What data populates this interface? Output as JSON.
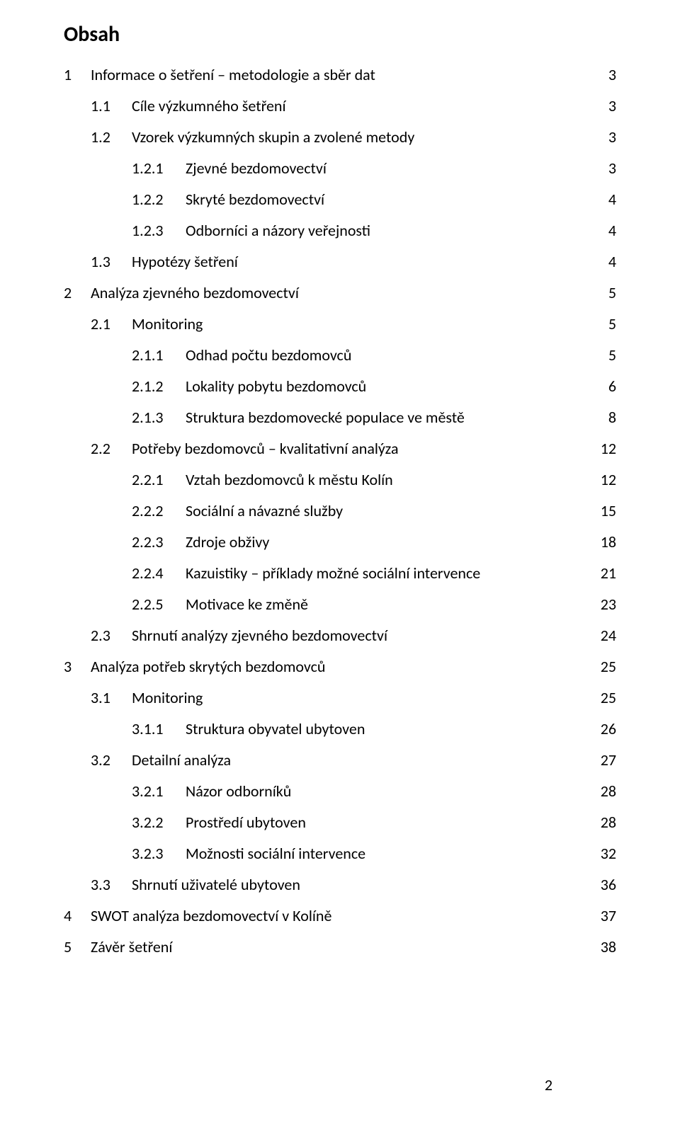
{
  "title": "Obsah",
  "page_number": "2",
  "colors": {
    "text": "#000000",
    "background": "#ffffff"
  },
  "typography": {
    "title_fontsize": 30,
    "row_fontsize": 22,
    "font_family": "Calibri"
  },
  "entries": [
    {
      "level": 1,
      "num": "1",
      "label": "Informace o šetření – metodologie a sběr dat",
      "page": "3"
    },
    {
      "level": 2,
      "num": "1.1",
      "label": "Cíle výzkumného šetření",
      "page": "3"
    },
    {
      "level": 2,
      "num": "1.2",
      "label": "Vzorek výzkumných skupin a zvolené metody",
      "page": "3"
    },
    {
      "level": 3,
      "num": "1.2.1",
      "label": "Zjevné bezdomovectví",
      "page": "3"
    },
    {
      "level": 3,
      "num": "1.2.2",
      "label": "Skryté bezdomovectví",
      "page": "4"
    },
    {
      "level": 3,
      "num": "1.2.3",
      "label": "Odborníci a názory veřejnosti",
      "page": "4"
    },
    {
      "level": 2,
      "num": "1.3",
      "label": "Hypotézy šetření",
      "page": "4"
    },
    {
      "level": 1,
      "num": "2",
      "label": "Analýza zjevného bezdomovectví",
      "page": "5"
    },
    {
      "level": 2,
      "num": "2.1",
      "label": "Monitoring",
      "page": "5"
    },
    {
      "level": 3,
      "num": "2.1.1",
      "label": "Odhad počtu bezdomovců",
      "page": "5"
    },
    {
      "level": 3,
      "num": "2.1.2",
      "label": "Lokality pobytu bezdomovců",
      "page": "6"
    },
    {
      "level": 3,
      "num": "2.1.3",
      "label": "Struktura bezdomovecké populace ve městě",
      "page": "8"
    },
    {
      "level": 2,
      "num": "2.2",
      "label": "Potřeby bezdomovců – kvalitativní analýza",
      "page": "12"
    },
    {
      "level": 3,
      "num": "2.2.1",
      "label": "Vztah bezdomovců k městu Kolín",
      "page": "12"
    },
    {
      "level": 3,
      "num": "2.2.2",
      "label": "Sociální a návazné služby",
      "page": "15"
    },
    {
      "level": 3,
      "num": "2.2.3",
      "label": "Zdroje obživy",
      "page": "18"
    },
    {
      "level": 3,
      "num": "2.2.4",
      "label": "Kazuistiky – příklady možné sociální intervence",
      "page": "21"
    },
    {
      "level": 3,
      "num": "2.2.5",
      "label": "Motivace ke změně",
      "page": "23"
    },
    {
      "level": 2,
      "num": "2.3",
      "label": "Shrnutí analýzy zjevného bezdomovectví",
      "page": "24"
    },
    {
      "level": 1,
      "num": "3",
      "label": "Analýza potřeb skrytých bezdomovců",
      "page": "25"
    },
    {
      "level": 2,
      "num": "3.1",
      "label": "Monitoring",
      "page": "25"
    },
    {
      "level": 3,
      "num": "3.1.1",
      "label": "Struktura obyvatel ubytoven",
      "page": "26"
    },
    {
      "level": 2,
      "num": "3.2",
      "label": "Detailní analýza",
      "page": "27"
    },
    {
      "level": 3,
      "num": "3.2.1",
      "label": "Názor odborníků",
      "page": "28"
    },
    {
      "level": 3,
      "num": "3.2.2",
      "label": "Prostředí ubytoven",
      "page": "28"
    },
    {
      "level": 3,
      "num": "3.2.3",
      "label": "Možnosti sociální intervence",
      "page": "32"
    },
    {
      "level": 2,
      "num": "3.3",
      "label": "Shrnutí uživatelé ubytoven",
      "page": "36"
    },
    {
      "level": 1,
      "num": "4",
      "label": "SWOT analýza bezdomovectví v Kolíně",
      "page": "37"
    },
    {
      "level": 1,
      "num": "5",
      "label": "Závěr šetření",
      "page": "38"
    }
  ]
}
